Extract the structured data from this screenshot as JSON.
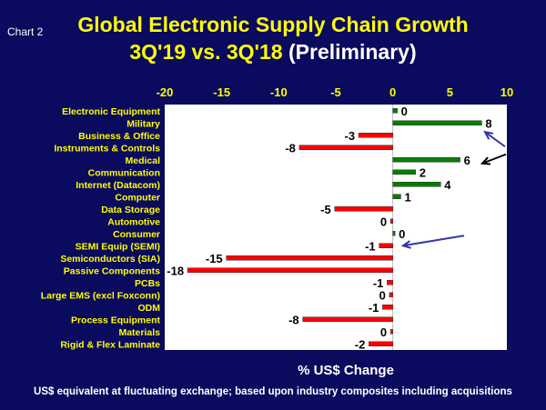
{
  "chart_label": "Chart 2",
  "title_line1": "Global Electronic Supply Chain Growth",
  "title_line2": "3Q'19 vs. 3Q'18",
  "title_prelim": "(Preliminary)",
  "footnote": "US$ equivalent at fluctuating exchange; based upon industry composites  including acquisitions",
  "chart_data": {
    "type": "bar",
    "orientation": "horizontal",
    "title": "Global Electronic Supply Chain Growth 3Q'19 vs. 3Q'18 (Preliminary)",
    "xlabel": "% US$ Change",
    "ylabel": "",
    "xlim": [
      -20,
      10
    ],
    "xticks": [
      -20,
      -15,
      -10,
      -5,
      0,
      5,
      10
    ],
    "grid": false,
    "legend": "none",
    "categories": [
      "Electronic Equipment",
      "Military",
      "Business & Office",
      "Instruments & Controls",
      "Medical",
      "Communication",
      "Internet (Datacom)",
      "Computer",
      "Data Storage",
      "Automotive",
      "Consumer",
      "SEMI Equip (SEMI)",
      "Semiconductors (SIA)",
      "Passive Components",
      "PCBs",
      "Large EMS (excl Foxconn)",
      "ODM",
      "Process Equipment",
      "Materials",
      "Rigid & Flex Laminate"
    ],
    "values": [
      0.4,
      7.8,
      -3,
      -8.2,
      5.9,
      2,
      4.2,
      0.7,
      -5.1,
      -0.2,
      0.2,
      -1.2,
      -14.6,
      -18,
      -0.5,
      -0.3,
      -0.9,
      -7.9,
      -0.2,
      -2.1
    ],
    "data_labels": [
      "0",
      "8",
      "-3",
      "-8",
      "6",
      "2",
      "4",
      "1",
      "-5",
      "0",
      "0",
      "-1",
      "-15",
      "-18",
      "-1",
      "0",
      "-1",
      "-8",
      "0",
      "-2"
    ],
    "colors": {
      "positive": "#008000",
      "negative": "#ff0000",
      "axis_text": "#ffff00",
      "label_text": "#000000"
    },
    "annotations": [
      {
        "type": "arrow",
        "target": "Military",
        "color": "#3333aa"
      },
      {
        "type": "arrow",
        "target": "Medical",
        "color": "#000000"
      },
      {
        "type": "arrow",
        "target": "SEMI Equip (SEMI)",
        "color": "#3333aa"
      }
    ]
  }
}
